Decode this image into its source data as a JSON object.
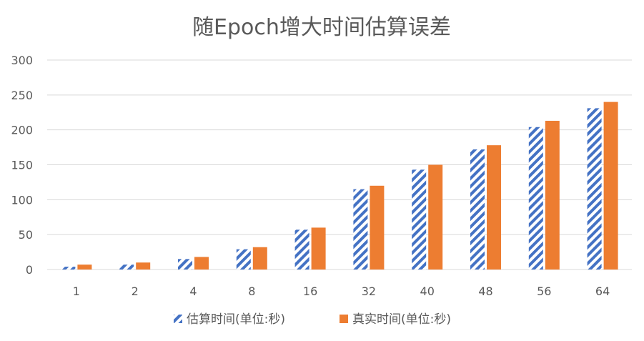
{
  "chart_data": {
    "type": "bar",
    "title": "随Epoch增大时间估算误差",
    "xlabel": "",
    "ylabel": "",
    "categories": [
      "1",
      "2",
      "4",
      "8",
      "16",
      "32",
      "40",
      "48",
      "56",
      "64"
    ],
    "series": [
      {
        "name": "估算时间(单位:秒)",
        "values": [
          4,
          7,
          15,
          29,
          57,
          115,
          143,
          172,
          204,
          231
        ],
        "color": "#4472C4",
        "fill": "diagonal-stripes"
      },
      {
        "name": "真实时间(单位:秒)",
        "values": [
          7,
          10,
          18,
          32,
          60,
          120,
          150,
          178,
          213,
          240
        ],
        "color": "#ED7D31",
        "fill": "solid"
      }
    ],
    "ylim": [
      0,
      300
    ],
    "yticks": [
      0,
      50,
      100,
      150,
      200,
      250,
      300
    ],
    "grid": true,
    "legend_position": "bottom",
    "colors": {
      "gridline": "#D9D9D9",
      "axis_text": "#595959",
      "title_text": "#595959"
    }
  }
}
